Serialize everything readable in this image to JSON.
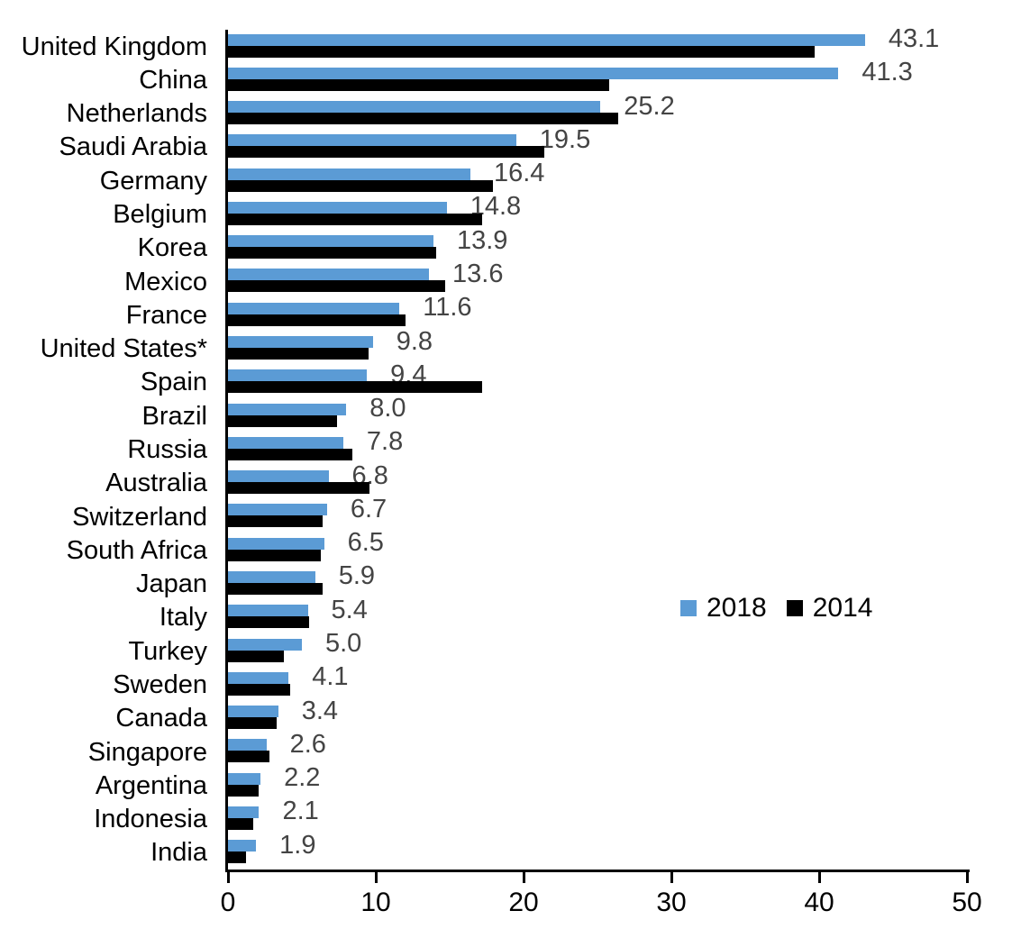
{
  "chart_data": {
    "type": "bar",
    "orientation": "horizontal",
    "title": "",
    "xlabel": "",
    "ylabel": "",
    "grid": false,
    "xlim": [
      0,
      50
    ],
    "x_tick_labels": [
      "0",
      "10",
      "20",
      "30",
      "40",
      "50"
    ],
    "legend_position": "center-right",
    "categories": [
      "United Kingdom",
      "China",
      "Netherlands",
      "Saudi Arabia",
      "Germany",
      "Belgium",
      "Korea",
      "Mexico",
      "France",
      "United States*",
      "Spain",
      "Brazil",
      "Russia",
      "Australia",
      "Switzerland",
      "South Africa",
      "Japan",
      "Italy",
      "Turkey",
      "Sweden",
      "Canada",
      "Singapore",
      "Argentina",
      "Indonesia",
      "India"
    ],
    "series": [
      {
        "name": "2018",
        "color": "#5B9BD5",
        "values": [
          43.1,
          41.3,
          25.2,
          19.5,
          16.4,
          14.8,
          13.9,
          13.6,
          11.6,
          9.8,
          9.4,
          8.0,
          7.8,
          6.8,
          6.7,
          6.5,
          5.9,
          5.4,
          5.0,
          4.1,
          3.4,
          2.6,
          2.2,
          2.1,
          1.9
        ]
      },
      {
        "name": "2014",
        "color": "#000000",
        "values": [
          39.7,
          25.8,
          26.4,
          21.4,
          17.9,
          17.2,
          14.1,
          14.7,
          12.0,
          9.5,
          17.2,
          7.4,
          8.4,
          9.6,
          6.4,
          6.3,
          6.4,
          5.5,
          3.8,
          4.2,
          3.3,
          2.8,
          2.1,
          1.7,
          1.2
        ]
      }
    ],
    "data_labels": {
      "series": "2018",
      "color": "#444444",
      "texts": [
        "43.1",
        "41.3",
        "25.2",
        "19.5",
        "16.4",
        "14.8",
        "13.9",
        "13.6",
        "11.6",
        "9.8",
        "9.4",
        "8.0",
        "7.8",
        "6.8",
        "6.7",
        "6.5",
        "5.9",
        "5.4",
        "5.0",
        "4.1",
        "3.4",
        "2.6",
        "2.2",
        "2.1",
        "1.9"
      ]
    }
  }
}
